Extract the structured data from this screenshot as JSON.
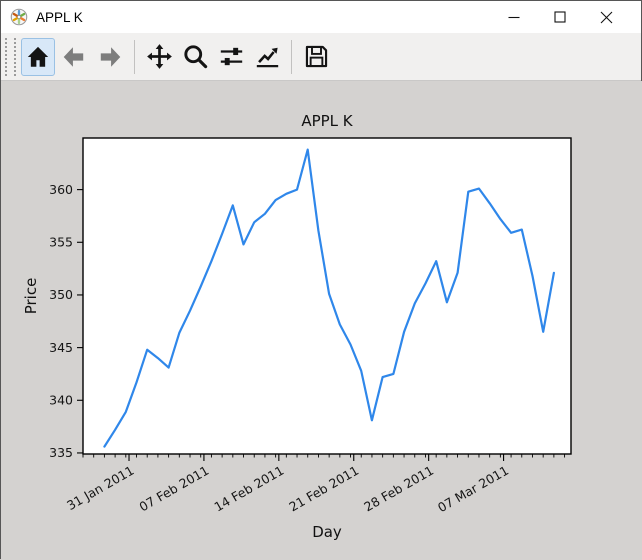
{
  "window": {
    "title": "APPL K",
    "icon": "matplotlib-logo",
    "controls": [
      {
        "name": "minimize"
      },
      {
        "name": "maximize"
      },
      {
        "name": "close"
      }
    ]
  },
  "toolbar": {
    "buttons": [
      {
        "name": "home",
        "icon": "home-icon",
        "active": true
      },
      {
        "name": "back",
        "icon": "back-arrow-icon",
        "active": false
      },
      {
        "name": "forward",
        "icon": "forward-arrow-icon",
        "active": false
      },
      {
        "name": "pan",
        "icon": "pan-arrows-icon",
        "active": false
      },
      {
        "name": "zoom",
        "icon": "magnifier-icon",
        "active": false
      },
      {
        "name": "configure-subplots",
        "icon": "sliders-icon",
        "active": false
      },
      {
        "name": "edit-parameters",
        "icon": "line-chart-icon",
        "active": false
      },
      {
        "name": "save",
        "icon": "floppy-disk-icon",
        "active": false
      }
    ]
  },
  "chart_data": {
    "type": "line",
    "title": "APPL K",
    "xlabel": "Day",
    "ylabel": "Price",
    "line_color": "#2f87ea",
    "axes_facecolor": "#ffffff",
    "figure_facecolor": "#d4d2d0",
    "grid": false,
    "legend": null,
    "x_spacing_days": 1,
    "values": [
      335.6,
      337.2,
      338.9,
      341.7,
      344.8,
      344.0,
      343.1,
      346.4,
      348.5,
      350.8,
      353.2,
      355.8,
      358.5,
      354.8,
      356.9,
      357.7,
      359.0,
      359.6,
      360.0,
      363.8,
      356.1,
      350.1,
      347.2,
      345.3,
      342.8,
      338.1,
      342.2,
      342.5,
      346.5,
      349.2,
      351.1,
      353.2,
      349.3,
      352.1,
      359.8,
      360.1,
      358.7,
      357.2,
      355.9,
      356.2,
      351.8,
      346.5,
      352.1
    ],
    "x_ticks": {
      "positions_days": [
        2.3,
        9.3,
        16.3,
        23.3,
        30.3,
        37.3
      ],
      "labels": [
        "31 Jan 2011",
        "07 Feb 2011",
        "14 Feb 2011",
        "21 Feb 2011",
        "28 Feb 2011",
        "07 Mar 2011"
      ],
      "rotation_deg": 30,
      "minor_ticks_every_day": true
    },
    "y_ticks": [
      335,
      340,
      345,
      350,
      355,
      360
    ],
    "xlim": [
      -2.0,
      43.6
    ],
    "ylim": [
      334.9,
      364.9
    ]
  }
}
